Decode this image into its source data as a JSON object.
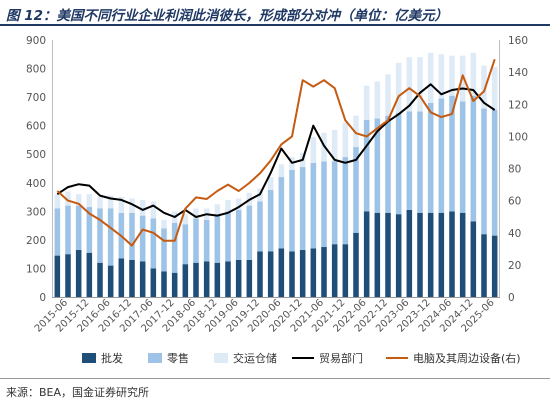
{
  "title": "图 12：美国不同行业企业利润此消彼长，形成部分对冲（单位：亿美元）",
  "source": "来源：BEA，国金证券研究所",
  "chart_data": {
    "type": "bar",
    "stacked": true,
    "x": [
      "2015-03",
      "2015-06",
      "2015-09",
      "2015-12",
      "2016-03",
      "2016-06",
      "2016-09",
      "2016-12",
      "2017-03",
      "2017-06",
      "2017-09",
      "2017-12",
      "2018-03",
      "2018-06",
      "2018-09",
      "2018-12",
      "2019-03",
      "2019-06",
      "2019-09",
      "2019-12",
      "2020-03",
      "2020-06",
      "2020-09",
      "2020-12",
      "2021-03",
      "2021-06",
      "2021-09",
      "2021-12",
      "2022-03",
      "2022-06",
      "2022-09",
      "2022-12",
      "2023-03",
      "2023-06",
      "2023-09",
      "2023-12",
      "2024-03",
      "2024-06",
      "2024-09",
      "2024-12",
      "2025-03",
      "2025-06"
    ],
    "x_tick_labels": [
      "2015-06",
      "2015-12",
      "2016-06",
      "2016-12",
      "2017-06",
      "2017-12",
      "2018-06",
      "2018-12",
      "2019-06",
      "2019-12",
      "2020-06",
      "2020-12",
      "2021-06",
      "2021-12",
      "2022-06",
      "2022-12",
      "2023-06",
      "2023-12",
      "2024-06",
      "2024-12",
      "2025-06"
    ],
    "y_left": {
      "min": 0,
      "max": 900,
      "ticks": [
        0,
        100,
        200,
        300,
        400,
        500,
        600,
        700,
        800,
        900
      ]
    },
    "y_right": {
      "min": 0,
      "max": 160,
      "ticks": [
        0,
        20,
        40,
        60,
        80,
        100,
        120,
        140,
        160
      ]
    },
    "grid": false,
    "legend_position": "bottom",
    "colors": {
      "wholesale": "#1f4e79",
      "retail": "#9dc3e6",
      "transport": "#deebf7",
      "trade": "#000000",
      "computer": "#c55a11"
    },
    "series": [
      {
        "name": "批发",
        "type": "bar",
        "axis": "left",
        "values": [
          145,
          150,
          165,
          155,
          120,
          110,
          135,
          130,
          125,
          100,
          90,
          85,
          115,
          120,
          125,
          120,
          125,
          130,
          130,
          160,
          160,
          170,
          160,
          165,
          170,
          175,
          185,
          185,
          225,
          300,
          295,
          295,
          290,
          305,
          295,
          295,
          295,
          300,
          295,
          265,
          220,
          215
        ]
      },
      {
        "name": "零售",
        "type": "bar",
        "axis": "left",
        "values": [
          165,
          170,
          155,
          160,
          190,
          200,
          160,
          165,
          160,
          175,
          150,
          175,
          140,
          155,
          145,
          165,
          175,
          175,
          190,
          175,
          215,
          250,
          285,
          290,
          300,
          300,
          290,
          305,
          300,
          320,
          330,
          340,
          355,
          345,
          355,
          385,
          400,
          405,
          390,
          440,
          440,
          440
        ]
      },
      {
        "name": "交运仓储",
        "type": "bar",
        "axis": "left",
        "values": [
          50,
          50,
          40,
          45,
          40,
          45,
          55,
          50,
          55,
          60,
          30,
          40,
          35,
          35,
          40,
          40,
          40,
          40,
          45,
          45,
          45,
          45,
          45,
          50,
          90,
          100,
          110,
          120,
          110,
          120,
          130,
          145,
          175,
          190,
          190,
          175,
          155,
          140,
          160,
          150,
          150,
          150
        ]
      },
      {
        "name": "贸易部门",
        "type": "line",
        "axis": "left",
        "values": [
          360,
          385,
          395,
          390,
          355,
          345,
          340,
          325,
          305,
          320,
          295,
          280,
          305,
          280,
          290,
          285,
          295,
          315,
          340,
          360,
          435,
          520,
          470,
          480,
          600,
          530,
          480,
          470,
          480,
          530,
          580,
          615,
          640,
          670,
          715,
          745,
          710,
          725,
          730,
          725,
          680,
          655
        ]
      },
      {
        "name": "电脑及其周边设备(右)",
        "type": "line",
        "axis": "right",
        "values": [
          66,
          60,
          58,
          52,
          48,
          43,
          38,
          32,
          42,
          40,
          35,
          35,
          55,
          62,
          61,
          66,
          70,
          66,
          71,
          77,
          85,
          95,
          100,
          135,
          131,
          135,
          130,
          110,
          102,
          100,
          105,
          110,
          125,
          130,
          125,
          115,
          112,
          114,
          138,
          122,
          128,
          148
        ]
      }
    ]
  }
}
